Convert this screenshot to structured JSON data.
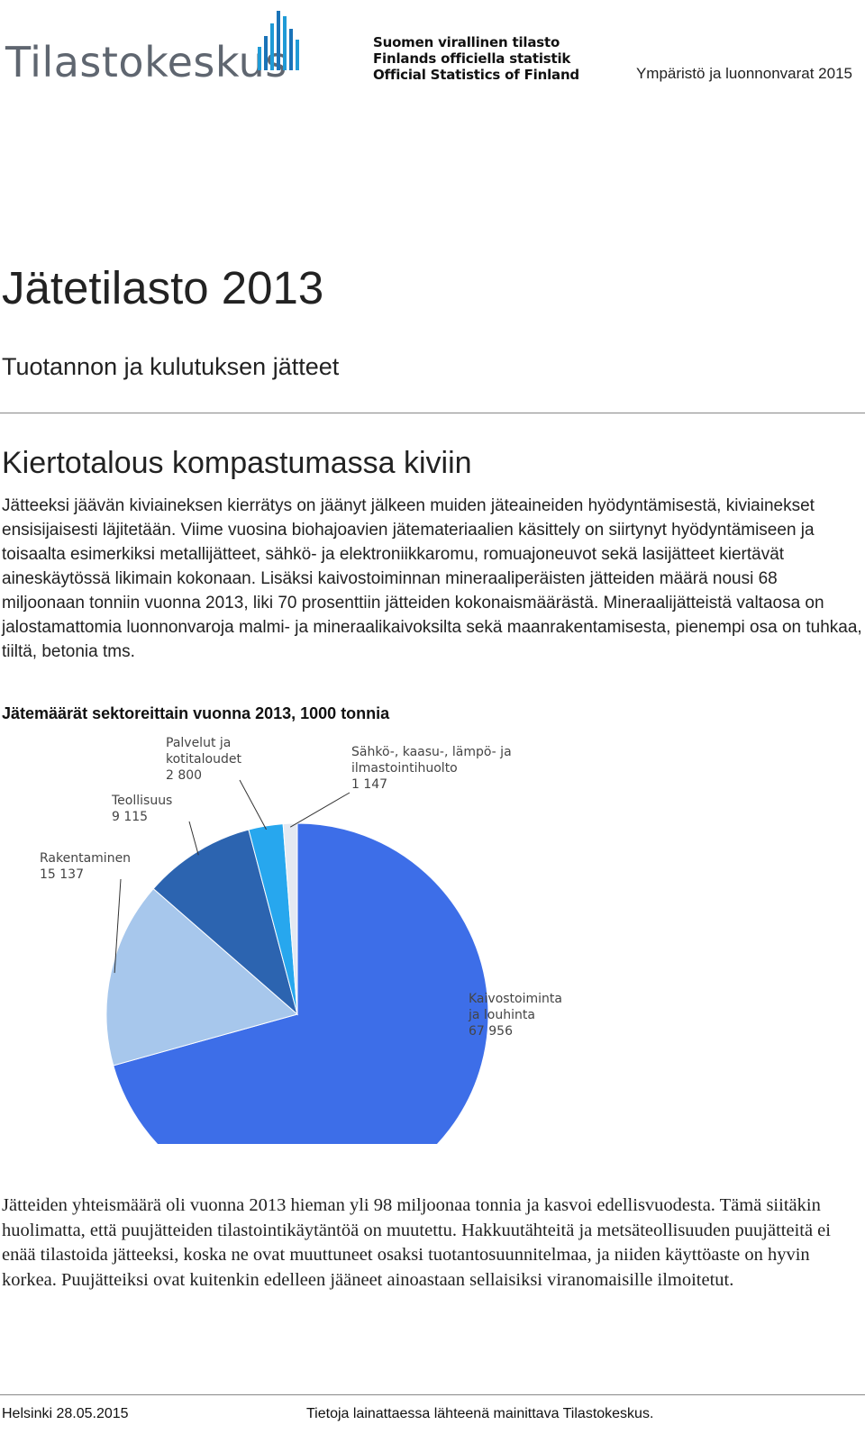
{
  "header": {
    "logo_text": "Tilastokeskus",
    "official_lines": [
      "Suomen virallinen tilasto",
      "Finlands officiella statistik",
      "Official Statistics of Finland"
    ],
    "series": "Ympäristö ja luonnonvarat 2015"
  },
  "document": {
    "title": "Jätetilasto 2013",
    "subtitle": "Tuotannon ja kulutuksen jätteet",
    "section_heading": "Kiertotalous kompastumassa kiviin",
    "intro_paragraph": "Jätteeksi jäävän kiviaineksen kierrätys on jäänyt jälkeen muiden jäteaineiden hyödyntämisestä, kiviainekset ensisijaisesti läjitetään. Viime vuosina biohajoavien jätemateriaalien käsittely on siirtynyt hyödyntämiseen ja toisaalta esimerkiksi metallijätteet, sähkö- ja elektroniikkaromu, romuajoneuvot sekä lasijätteet kiertävät aineskäytössä likimain kokonaan. Lisäksi kaivostoiminnan mineraaliperäisten jätteiden määrä nousi 68 miljoonaan tonniin vuonna 2013, liki 70 prosenttiin jätteiden kokonaismäärästä. Mineraalijätteistä valtaosa on jalostamattomia luonnonvaroja malmi- ja mineraalikaivoksilta sekä maanrakentamisesta, pienempi osa on tuhkaa, tiiltä, betonia tms.",
    "figure_caption": "Jätemäärät sektoreittain vuonna 2013, 1000 tonnia",
    "body_paragraph": "Jätteiden yhteismäärä oli vuonna 2013 hieman yli 98 miljoonaa tonnia ja kasvoi edellisvuodesta. Tämä siitäkin huolimatta, että puujätteiden tilastointikäytäntöä on muutettu. Hakkuutähteitä ja metsäteollisuuden puujätteitä ei enää tilastoida jätteeksi, koska ne ovat muuttuneet osaksi tuotantosuunnitelmaa, ja niiden käyttöaste on hyvin korkea. Puujätteiksi ovat kuitenkin edelleen jääneet ainoastaan sellaisiksi viranomaisille ilmoitetut."
  },
  "footer": {
    "left": "Helsinki 28.05.2015",
    "right": "Tietoja lainattaessa lähteenä mainittava Tilastokeskus."
  },
  "chart_data": {
    "type": "pie",
    "slices": [
      {
        "label_lines": [
          "Kaivostoiminta",
          "ja louhinta"
        ],
        "value_text": "67 956",
        "value": 67956,
        "color": "#3d6ee8"
      },
      {
        "label_lines": [
          "Rakentaminen"
        ],
        "value_text": "15 137",
        "value": 15137,
        "color": "#a7c7ec"
      },
      {
        "label_lines": [
          "Teollisuus"
        ],
        "value_text": "9 115",
        "value": 9115,
        "color": "#2c64b0"
      },
      {
        "label_lines": [
          "Palvelut ja",
          "kotitaloudet"
        ],
        "value_text": "2 800",
        "value": 2800,
        "color": "#27a7ee"
      },
      {
        "label_lines": [
          "Sähkö-, kaasu-, lämpö- ja",
          "ilmastointihuolto"
        ],
        "value_text": "1 147",
        "value": 1147,
        "color": "#e4e9f2"
      }
    ]
  }
}
